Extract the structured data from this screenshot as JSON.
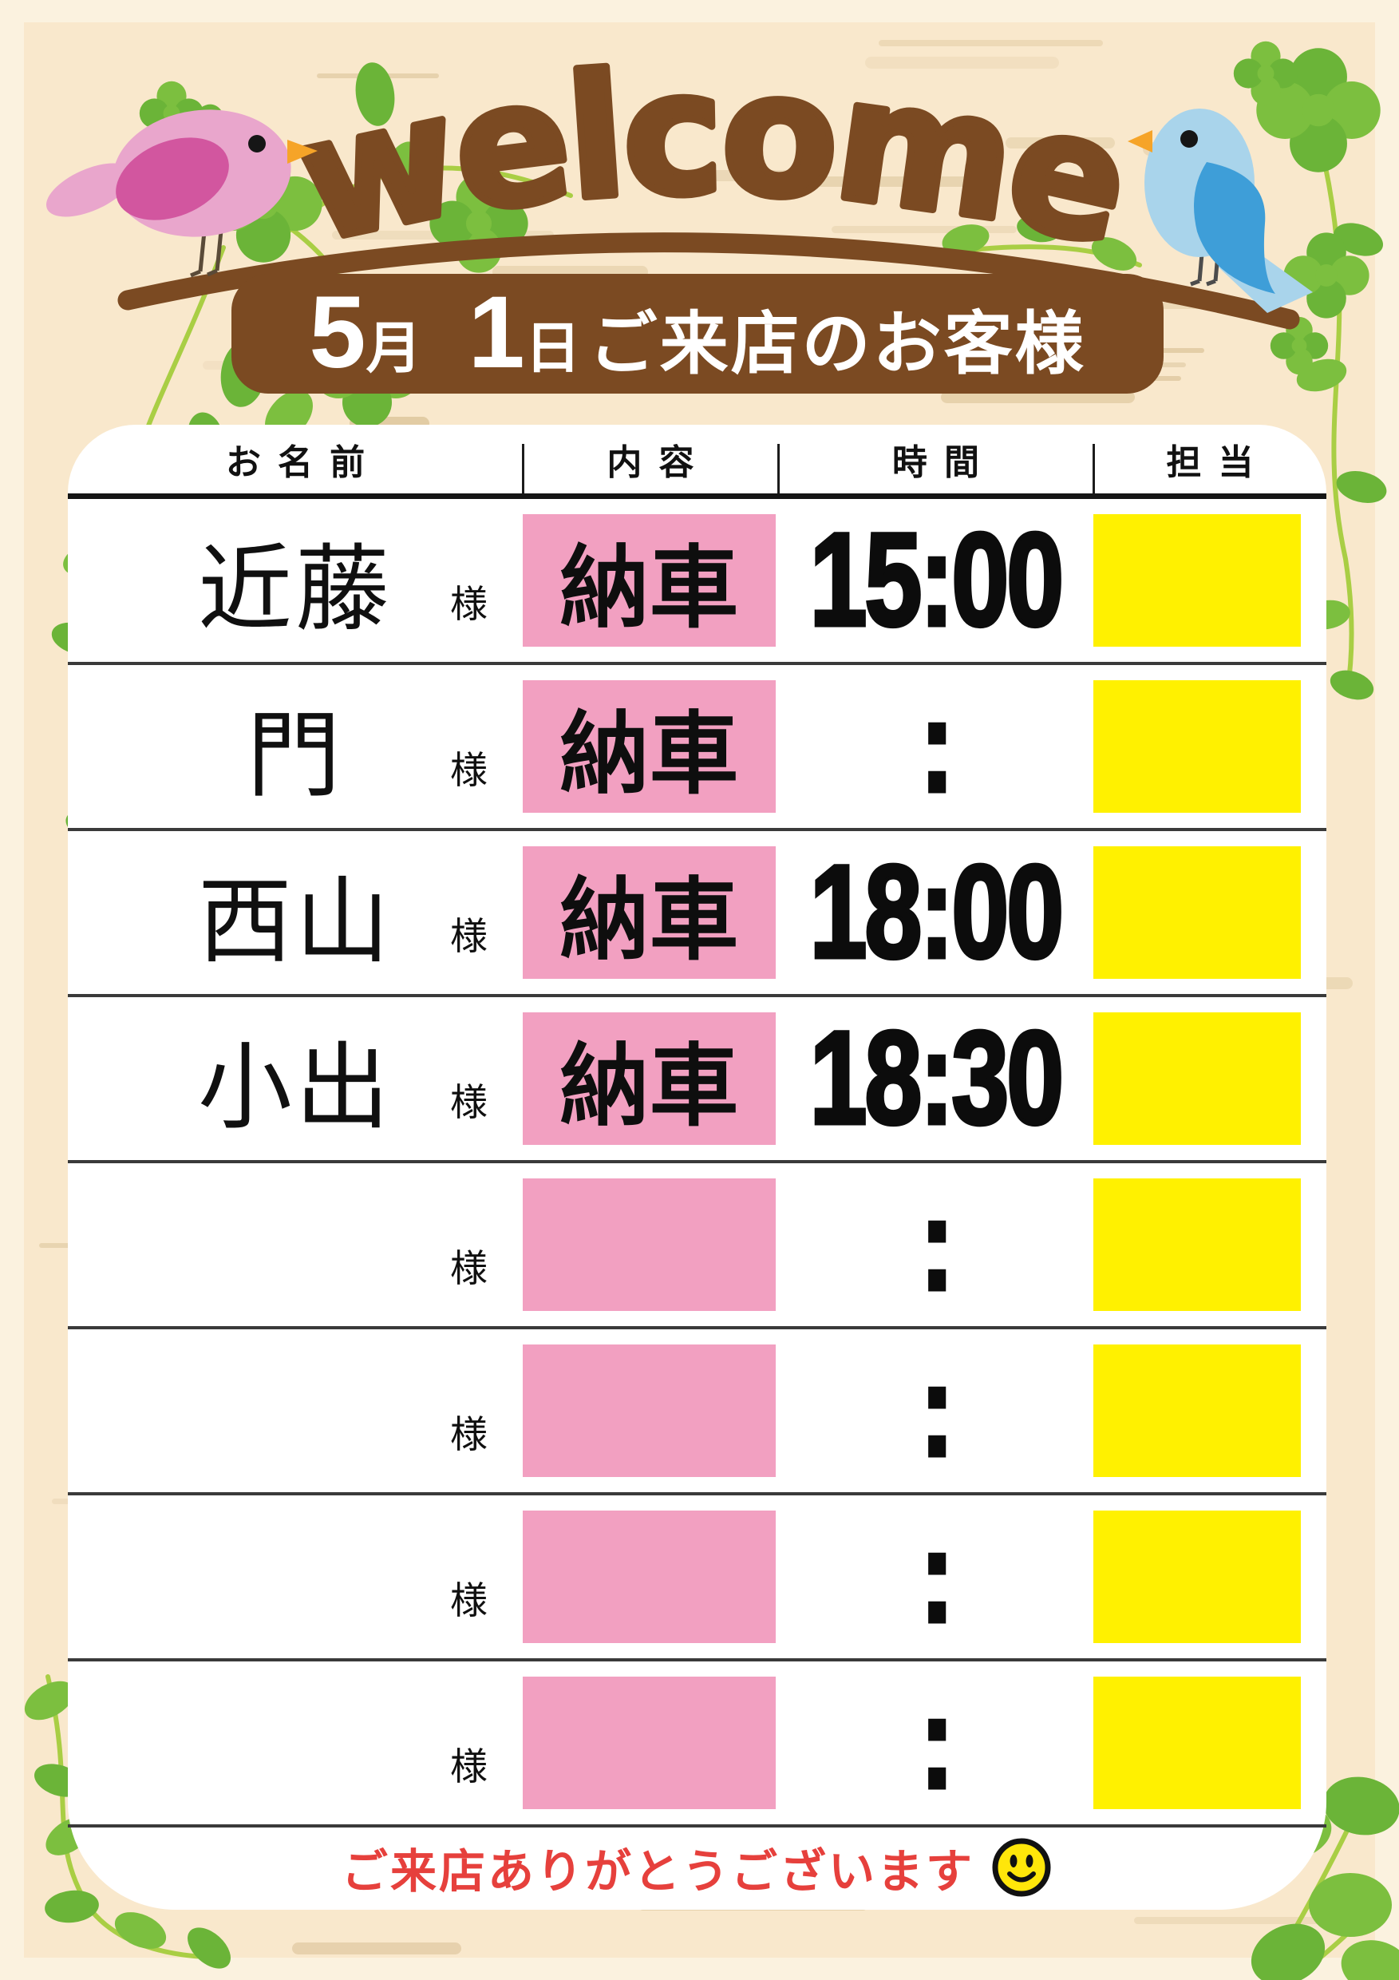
{
  "page": {
    "welcome": "welcome"
  },
  "banner": {
    "month_num": "5",
    "month_unit": "月",
    "day_num": "1",
    "day_unit": "日",
    "suffix": "ご来店のお客様"
  },
  "table": {
    "headers": {
      "name": "お名前",
      "content": "内容",
      "time": "時間",
      "staff": "担当"
    },
    "honorific": "様",
    "rows": [
      {
        "name": "近藤",
        "content": "納車",
        "time": "15:00",
        "staff": ""
      },
      {
        "name": "門",
        "content": "納車",
        "time": ":",
        "staff": ""
      },
      {
        "name": "西山",
        "content": "納車",
        "time": "18:00",
        "staff": ""
      },
      {
        "name": "小出",
        "content": "納車",
        "time": "18:30",
        "staff": ""
      },
      {
        "name": "",
        "content": "",
        "time": ":",
        "staff": ""
      },
      {
        "name": "",
        "content": "",
        "time": ":",
        "staff": ""
      },
      {
        "name": "",
        "content": "",
        "time": ":",
        "staff": ""
      },
      {
        "name": "",
        "content": "",
        "time": ":",
        "staff": ""
      }
    ]
  },
  "footer": {
    "message": "ご来店ありがとうございます",
    "smiley_icon": "smiley-face"
  },
  "colors": {
    "brown": "#7b4a22",
    "card": "#ffffff",
    "wood_bg": "#f9e8cc",
    "wood_streak": "#e0c9a2",
    "frame": "#fbf2df",
    "pink_cell": "#f2a0c1",
    "yellow_cell": "#fff100",
    "red_text": "#e6403c",
    "pink_bird_body": "#e9a6cc",
    "pink_bird_wing": "#d2569f",
    "blue_bird_body": "#a9d4eb",
    "blue_bird_wing": "#3e9ed8",
    "leaf_green": "#7cbf3f",
    "vine_green": "#a9ce44",
    "beak_orange": "#f6a428",
    "smiley_yellow": "#ffe60a",
    "separator": "#3a3a3a"
  }
}
